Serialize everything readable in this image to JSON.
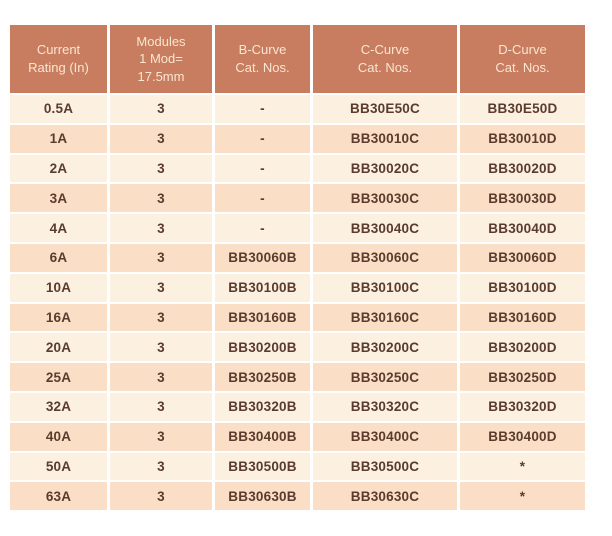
{
  "table": {
    "name": "mcb-catalog-numbers-table",
    "columns": [
      {
        "label": "Current\nRating (In)"
      },
      {
        "label": "Modules\n1 Mod=\n17.5mm"
      },
      {
        "label": "B-Curve\nCat. Nos."
      },
      {
        "label": "C-Curve\nCat. Nos."
      },
      {
        "label": "D-Curve\nCat. Nos."
      }
    ],
    "rows": [
      [
        "0.5A",
        "3",
        "-",
        "BB30E50C",
        "BB30E50D"
      ],
      [
        "1A",
        "3",
        "-",
        "BB30010C",
        "BB30010D"
      ],
      [
        "2A",
        "3",
        "-",
        "BB30020C",
        "BB30020D"
      ],
      [
        "3A",
        "3",
        "-",
        "BB30030C",
        "BB30030D"
      ],
      [
        "4A",
        "3",
        "-",
        "BB30040C",
        "BB30040D"
      ],
      [
        "6A",
        "3",
        "BB30060B",
        "BB30060C",
        "BB30060D"
      ],
      [
        "10A",
        "3",
        "BB30100B",
        "BB30100C",
        "BB30100D"
      ],
      [
        "16A",
        "3",
        "BB30160B",
        "BB30160C",
        "BB30160D"
      ],
      [
        "20A",
        "3",
        "BB30200B",
        "BB30200C",
        "BB30200D"
      ],
      [
        "25A",
        "3",
        "BB30250B",
        "BB30250C",
        "BB30250D"
      ],
      [
        "32A",
        "3",
        "BB30320B",
        "BB30320C",
        "BB30320D"
      ],
      [
        "40A",
        "3",
        "BB30400B",
        "BB30400C",
        "BB30400D"
      ],
      [
        "50A",
        "3",
        "BB30500B",
        "BB30500C",
        "*"
      ],
      [
        "63A",
        "3",
        "BB30630B",
        "BB30630C",
        "*"
      ]
    ],
    "colors": {
      "header_bg": "#C97D60",
      "header_text": "#F8E6D0",
      "row_light": "#FCF1E1",
      "row_dark": "#FADFC6",
      "body_text": "#5A3B2E",
      "gap": "#FFFFFF"
    }
  }
}
